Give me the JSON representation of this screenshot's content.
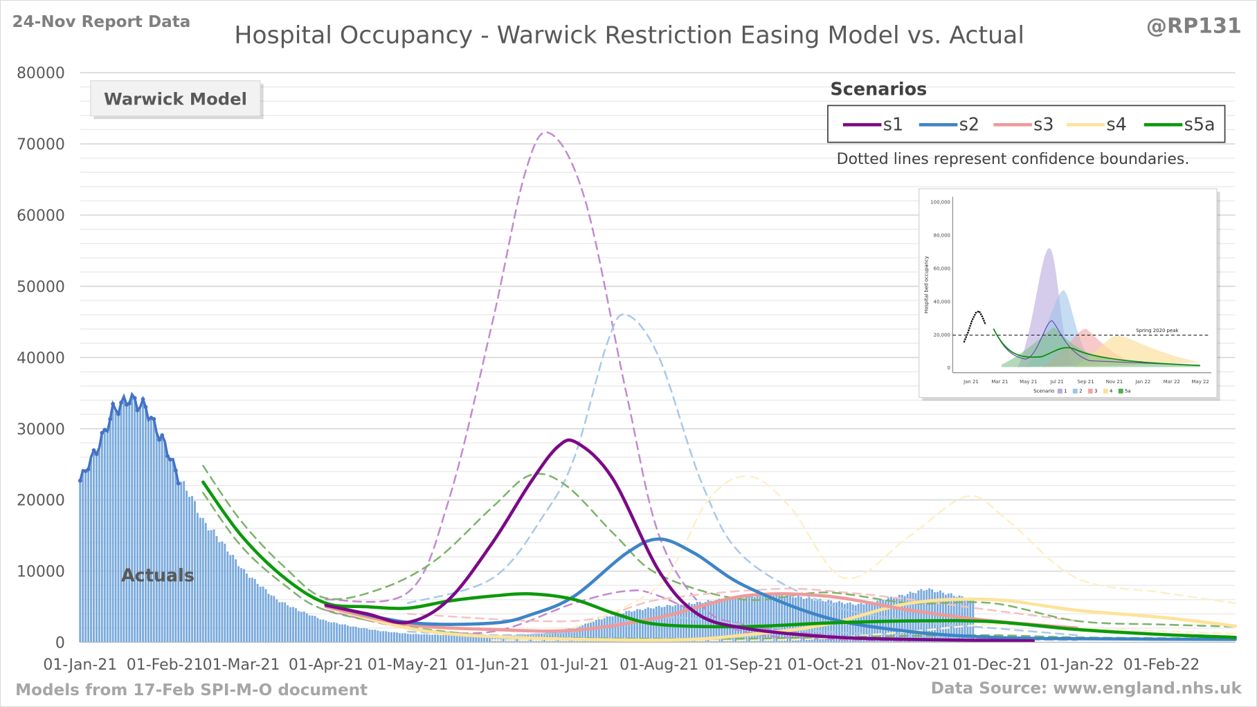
{
  "chart_data": {
    "type": "line",
    "title": "Hospital Occupancy - Warwick Restriction Easing Model vs. Actual",
    "report_label": "24-Nov Report Data",
    "author": "@RP131",
    "footer_left": "Models from 17-Feb SPI-M-O document",
    "footer_right": "Data Source: www.england.nhs.uk",
    "model_box_label": "Warwick Model",
    "actuals_label": "Actuals",
    "legend_title": "Scenarios",
    "legend_note": "Dotted lines represent confidence boundaries.",
    "legend_placement": "top-right",
    "ylim": [
      0,
      80000
    ],
    "yticks": [
      0,
      10000,
      20000,
      30000,
      40000,
      50000,
      60000,
      70000,
      80000
    ],
    "x_unit": "days since 01-Jan-21",
    "xlim": [
      0,
      423
    ],
    "xticks": [
      {
        "day": 0,
        "label": "01-Jan-21"
      },
      {
        "day": 31,
        "label": "01-Feb-21"
      },
      {
        "day": 59,
        "label": "01-Mar-21"
      },
      {
        "day": 90,
        "label": "01-Apr-21"
      },
      {
        "day": 120,
        "label": "01-May-21"
      },
      {
        "day": 151,
        "label": "01-Jun-21"
      },
      {
        "day": 181,
        "label": "01-Jul-21"
      },
      {
        "day": 212,
        "label": "01-Aug-21"
      },
      {
        "day": 243,
        "label": "01-Sep-21"
      },
      {
        "day": 273,
        "label": "01-Oct-21"
      },
      {
        "day": 304,
        "label": "01-Nov-21"
      },
      {
        "day": 334,
        "label": "01-Dec-21"
      },
      {
        "day": 365,
        "label": "01-Jan-22"
      },
      {
        "day": 396,
        "label": "01-Feb-22"
      }
    ],
    "colors": {
      "actual": "#7aaadc",
      "actual_line": "#4472c4",
      "s1": "#7b0a87",
      "s2": "#3d85c6",
      "s3": "#ee9a9a",
      "s4": "#fde39a",
      "s5a": "#0a9a0a",
      "s5a_ci": "#7db36a",
      "s1_ci": "#c38ad0",
      "s2_ci": "#a9c9e8",
      "s3_ci": "#f5c2c2",
      "s4_ci": "#fdf0c8"
    },
    "actuals": [
      [
        0,
        22700
      ],
      [
        3,
        25000
      ],
      [
        6,
        27000
      ],
      [
        9,
        29500
      ],
      [
        12,
        32500
      ],
      [
        15,
        33300
      ],
      [
        18,
        34300
      ],
      [
        21,
        33500
      ],
      [
        24,
        33000
      ],
      [
        27,
        30500
      ],
      [
        30,
        28500
      ],
      [
        33,
        26000
      ],
      [
        36,
        23000
      ],
      [
        40,
        21000
      ],
      [
        45,
        17000
      ],
      [
        50,
        15000
      ],
      [
        55,
        12500
      ],
      [
        60,
        10000
      ],
      [
        66,
        8000
      ],
      [
        72,
        6000
      ],
      [
        80,
        4500
      ],
      [
        90,
        3000
      ],
      [
        100,
        2200
      ],
      [
        110,
        1600
      ],
      [
        120,
        1200
      ],
      [
        135,
        1000
      ],
      [
        150,
        900
      ],
      [
        160,
        1000
      ],
      [
        170,
        1300
      ],
      [
        180,
        2000
      ],
      [
        190,
        3200
      ],
      [
        200,
        4300
      ],
      [
        212,
        5000
      ],
      [
        225,
        5500
      ],
      [
        240,
        6300
      ],
      [
        255,
        6800
      ],
      [
        270,
        6000
      ],
      [
        285,
        5300
      ],
      [
        300,
        6500
      ],
      [
        310,
        7500
      ],
      [
        318,
        6800
      ],
      [
        327,
        6000
      ]
    ],
    "actuals_line_until_day": 36,
    "series": [
      {
        "name": "s1",
        "style": "solid",
        "points": [
          [
            90,
            5200
          ],
          [
            105,
            4000
          ],
          [
            120,
            2800
          ],
          [
            135,
            6000
          ],
          [
            151,
            14000
          ],
          [
            165,
            22500
          ],
          [
            175,
            27500
          ],
          [
            182,
            28000
          ],
          [
            195,
            23000
          ],
          [
            212,
            10000
          ],
          [
            226,
            4000
          ],
          [
            243,
            2000
          ],
          [
            273,
            800
          ],
          [
            304,
            400
          ],
          [
            349,
            200
          ]
        ]
      },
      {
        "name": "s1 upper",
        "style": "dashed",
        "ci_of": "s1",
        "points": [
          [
            90,
            6000
          ],
          [
            120,
            7000
          ],
          [
            135,
            20000
          ],
          [
            151,
            45000
          ],
          [
            163,
            66000
          ],
          [
            172,
            71500
          ],
          [
            185,
            62000
          ],
          [
            200,
            35000
          ],
          [
            212,
            15000
          ],
          [
            228,
            5000
          ],
          [
            243,
            2500
          ],
          [
            273,
            1000
          ],
          [
            304,
            500
          ]
        ]
      },
      {
        "name": "s1 lower",
        "style": "dashed",
        "ci_of": "s1",
        "points": [
          [
            90,
            4500
          ],
          [
            120,
            2000
          ],
          [
            151,
            1500
          ],
          [
            181,
            5500
          ],
          [
            200,
            7200
          ],
          [
            212,
            6500
          ],
          [
            243,
            1500
          ],
          [
            273,
            500
          ],
          [
            304,
            200
          ]
        ]
      },
      {
        "name": "s2",
        "style": "solid",
        "points": [
          [
            90,
            5300
          ],
          [
            120,
            2800
          ],
          [
            151,
            2700
          ],
          [
            166,
            4000
          ],
          [
            181,
            6500
          ],
          [
            200,
            12500
          ],
          [
            212,
            14500
          ],
          [
            225,
            12500
          ],
          [
            243,
            8000
          ],
          [
            273,
            3500
          ],
          [
            304,
            1500
          ],
          [
            334,
            700
          ],
          [
            365,
            500
          ],
          [
            423,
            400
          ]
        ]
      },
      {
        "name": "s2 upper",
        "style": "dashed",
        "ci_of": "s2",
        "points": [
          [
            120,
            5500
          ],
          [
            151,
            9000
          ],
          [
            170,
            18000
          ],
          [
            181,
            26000
          ],
          [
            193,
            42000
          ],
          [
            200,
            46000
          ],
          [
            212,
            40000
          ],
          [
            228,
            22000
          ],
          [
            243,
            12000
          ],
          [
            273,
            5500
          ],
          [
            304,
            3000
          ],
          [
            334,
            2000
          ],
          [
            365,
            1000
          ]
        ]
      },
      {
        "name": "s2 lower",
        "style": "dashed",
        "ci_of": "s2",
        "points": [
          [
            120,
            1500
          ],
          [
            151,
            1000
          ],
          [
            181,
            1500
          ],
          [
            212,
            3500
          ],
          [
            243,
            2500
          ],
          [
            273,
            1500
          ],
          [
            334,
            500
          ],
          [
            365,
            300
          ]
        ]
      },
      {
        "name": "s3",
        "style": "solid",
        "points": [
          [
            90,
            5000
          ],
          [
            120,
            2500
          ],
          [
            151,
            1800
          ],
          [
            181,
            1700
          ],
          [
            212,
            3500
          ],
          [
            243,
            6500
          ],
          [
            273,
            6500
          ],
          [
            304,
            4500
          ],
          [
            334,
            3000
          ],
          [
            365,
            2000
          ]
        ]
      },
      {
        "name": "s3 upper",
        "style": "dashed",
        "ci_of": "s3",
        "points": [
          [
            120,
            4000
          ],
          [
            181,
            3000
          ],
          [
            212,
            6000
          ],
          [
            255,
            7500
          ],
          [
            280,
            7000
          ],
          [
            304,
            6000
          ],
          [
            334,
            4500
          ],
          [
            365,
            3000
          ]
        ]
      },
      {
        "name": "s4",
        "style": "solid",
        "points": [
          [
            90,
            5000
          ],
          [
            120,
            2000
          ],
          [
            151,
            800
          ],
          [
            212,
            300
          ],
          [
            243,
            1000
          ],
          [
            273,
            2500
          ],
          [
            304,
            5500
          ],
          [
            334,
            6000
          ],
          [
            365,
            4500
          ],
          [
            396,
            3500
          ],
          [
            423,
            2300
          ]
        ]
      },
      {
        "name": "s4 upper",
        "style": "dashed",
        "ci_of": "s4",
        "points": [
          [
            181,
            2000
          ],
          [
            212,
            8000
          ],
          [
            230,
            20000
          ],
          [
            245,
            23300
          ],
          [
            260,
            19000
          ],
          [
            280,
            9000
          ],
          [
            304,
            15000
          ],
          [
            325,
            20500
          ],
          [
            340,
            17000
          ],
          [
            365,
            9000
          ],
          [
            396,
            7000
          ],
          [
            423,
            5500
          ]
        ]
      },
      {
        "name": "s4 lower",
        "style": "dashed",
        "ci_of": "s4",
        "points": [
          [
            151,
            300
          ],
          [
            243,
            300
          ],
          [
            273,
            600
          ],
          [
            304,
            1500
          ],
          [
            334,
            2500
          ],
          [
            365,
            2000
          ],
          [
            423,
            1200
          ]
        ]
      },
      {
        "name": "s5a",
        "style": "solid",
        "points": [
          [
            45,
            22500
          ],
          [
            59,
            15000
          ],
          [
            75,
            9000
          ],
          [
            90,
            5500
          ],
          [
            105,
            5000
          ],
          [
            120,
            4800
          ],
          [
            135,
            5800
          ],
          [
            151,
            6500
          ],
          [
            165,
            6800
          ],
          [
            181,
            6000
          ],
          [
            196,
            4000
          ],
          [
            212,
            2500
          ],
          [
            243,
            2200
          ],
          [
            273,
            2700
          ],
          [
            304,
            3000
          ],
          [
            334,
            2900
          ],
          [
            365,
            1800
          ],
          [
            396,
            1100
          ],
          [
            423,
            700
          ]
        ]
      },
      {
        "name": "s5a upper",
        "style": "dashed",
        "ci_of": "s5a",
        "points": [
          [
            45,
            24800
          ],
          [
            59,
            17000
          ],
          [
            75,
            10500
          ],
          [
            90,
            6200
          ],
          [
            110,
            7500
          ],
          [
            130,
            11500
          ],
          [
            151,
            19000
          ],
          [
            165,
            23500
          ],
          [
            178,
            22000
          ],
          [
            196,
            15000
          ],
          [
            212,
            9500
          ],
          [
            243,
            6000
          ],
          [
            273,
            7000
          ],
          [
            304,
            5500
          ],
          [
            334,
            5500
          ],
          [
            365,
            3000
          ],
          [
            396,
            2500
          ],
          [
            423,
            2200
          ]
        ]
      },
      {
        "name": "s5a lower",
        "style": "dashed",
        "ci_of": "s5a",
        "points": [
          [
            45,
            21000
          ],
          [
            59,
            13500
          ],
          [
            75,
            8000
          ],
          [
            90,
            4500
          ],
          [
            120,
            2200
          ],
          [
            151,
            900
          ],
          [
            181,
            600
          ],
          [
            212,
            500
          ],
          [
            243,
            500
          ],
          [
            273,
            700
          ],
          [
            304,
            900
          ],
          [
            334,
            1000
          ],
          [
            365,
            700
          ],
          [
            423,
            500
          ]
        ]
      }
    ],
    "legend": [
      "s1",
      "s2",
      "s3",
      "s4",
      "s5a"
    ],
    "inset": {
      "ylabel": "Hospital bed occupancy",
      "yticks": [
        "0",
        "20,000",
        "40,000",
        "60,000",
        "80,000",
        "100,000"
      ],
      "xticks": [
        "Jan 21",
        "Mar 21",
        "May 21",
        "Jul 21",
        "Sep 21",
        "Nov 21",
        "Jan 22",
        "Mar 22",
        "May 22"
      ],
      "annotation": "Spring 2020 peak",
      "legend_title": "Scenario",
      "legend": [
        "1",
        "2",
        "3",
        "4",
        "5a"
      ]
    }
  }
}
